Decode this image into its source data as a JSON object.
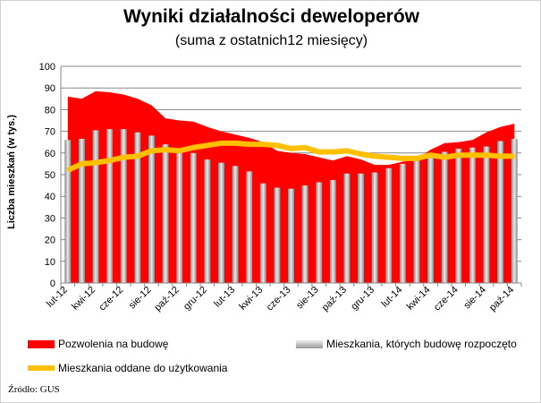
{
  "chart_data": {
    "type": "area+bar+line",
    "title": "Wyniki działalności deweloperów",
    "subtitle": "(suma z ostatnich12 miesięcy)",
    "ylabel": "Liczba  mieszkań (w tys.)",
    "ylim": [
      0,
      100
    ],
    "yticks": [
      0,
      10,
      20,
      30,
      40,
      50,
      60,
      70,
      80,
      90,
      100
    ],
    "grid": true,
    "legend": "bottom",
    "tick_labels": [
      "lut-12",
      "kwi-12",
      "cze-12",
      "sie-12",
      "paź-12",
      "gru-12",
      "lut-13",
      "kwi-13",
      "cze-13",
      "sie-13",
      "paź-13",
      "gru-13",
      "lut-14",
      "kwi-14",
      "cze-14",
      "sie-14",
      "paź-14"
    ],
    "x": [
      "lut-12",
      "mar-12",
      "kwi-12",
      "maj-12",
      "cze-12",
      "lip-12",
      "sie-12",
      "wrz-12",
      "paź-12",
      "lis-12",
      "gru-12",
      "sty-13",
      "lut-13",
      "mar-13",
      "kwi-13",
      "maj-13",
      "cze-13",
      "lip-13",
      "sie-13",
      "wrz-13",
      "paź-13",
      "lis-13",
      "gru-13",
      "sty-14",
      "lut-14",
      "mar-14",
      "kwi-14",
      "maj-14",
      "cze-14",
      "lip-14",
      "sie-14",
      "wrz-14",
      "paź-14"
    ],
    "series": [
      {
        "name": "Pozwolenia na budowę",
        "type": "area",
        "color": "#ff0000",
        "values": [
          86,
          85,
          88.5,
          88,
          87,
          85,
          82,
          76,
          75,
          74.5,
          72,
          70,
          68.5,
          67,
          65,
          61,
          60,
          59.5,
          58,
          56.5,
          58.5,
          57,
          54.5,
          54.5,
          56,
          57,
          61.5,
          64.5,
          65,
          66,
          69.5,
          72,
          73.5
        ]
      },
      {
        "name": "Mieszkania, których budowę rozpoczęto",
        "type": "bar",
        "color": "#b0b0b0",
        "values": [
          66,
          66.5,
          70.5,
          71,
          71,
          69.5,
          68,
          64,
          60.5,
          60,
          57,
          55.5,
          54,
          51.5,
          46,
          44,
          43.5,
          45,
          46.5,
          47.5,
          50.5,
          50.5,
          51,
          53,
          55,
          57.5,
          59,
          60.5,
          62,
          62.5,
          63,
          65.5,
          66.5
        ]
      },
      {
        "name": "Mieszkania oddane do użytkowania",
        "type": "line",
        "color": "#ffc000",
        "values": [
          52,
          55,
          55.5,
          56.5,
          58,
          58.5,
          61,
          61.5,
          61,
          62.5,
          63.5,
          64.5,
          64.5,
          64,
          64,
          63.5,
          62,
          62.5,
          60.5,
          60.5,
          61,
          59.5,
          58.5,
          58,
          57.5,
          57.5,
          59,
          58,
          59,
          59,
          59,
          58.5,
          58.5
        ]
      }
    ]
  },
  "source": "Źródło: GUS"
}
